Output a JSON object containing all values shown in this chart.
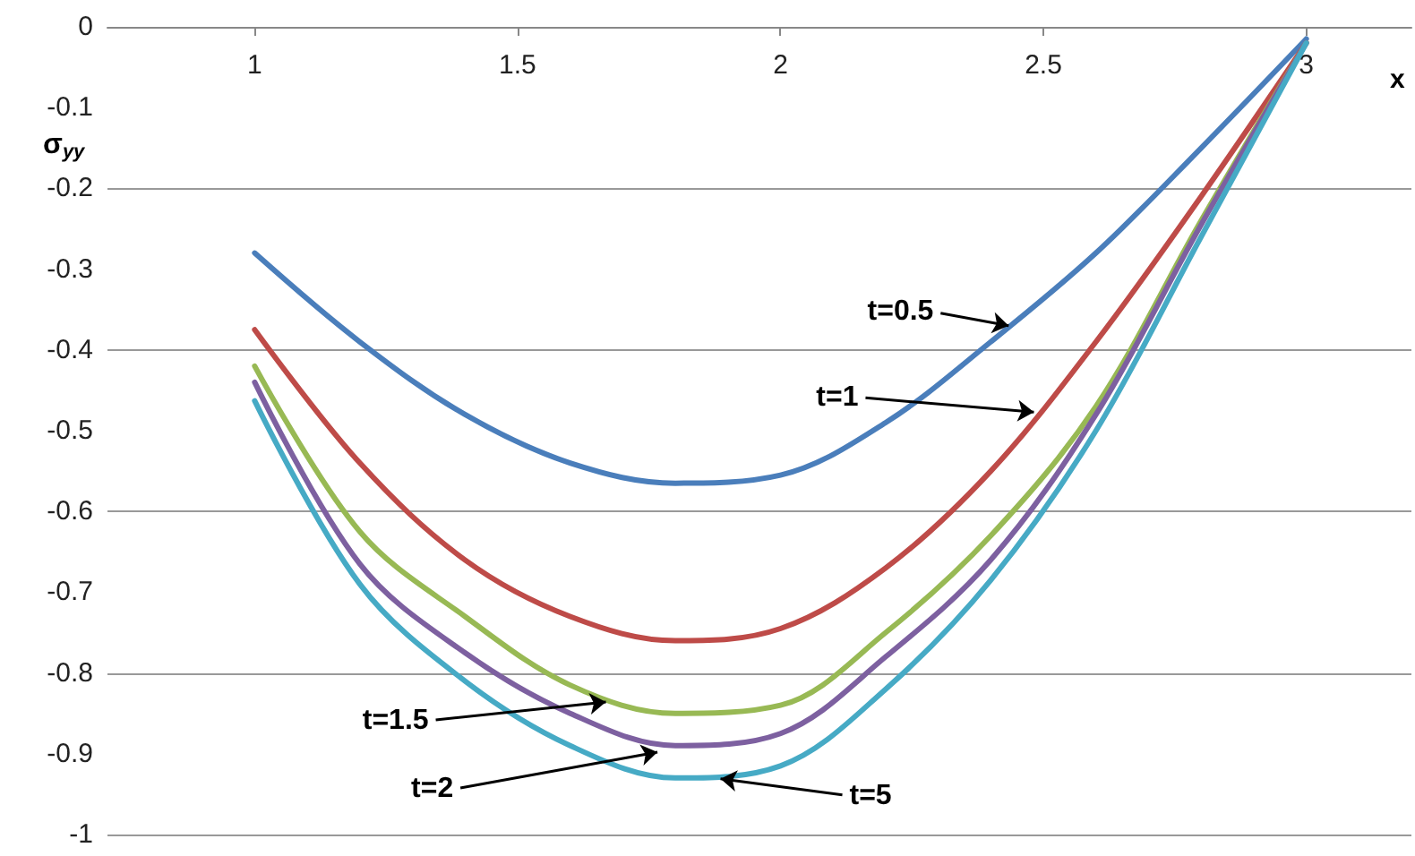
{
  "chart_data": {
    "type": "line",
    "ylabel": "σ$_{yy}$",
    "xlabel": "x",
    "x": [
      1,
      1.2,
      1.4,
      1.6,
      1.8,
      2,
      2.2,
      2.4,
      2.6,
      2.8,
      3
    ],
    "series": [
      {
        "color": "#4a7ebb",
        "values": [
          -0.28,
          -0.39,
          -0.48,
          -0.54,
          -0.565,
          -0.555,
          -0.49,
          -0.39,
          -0.28,
          -0.15,
          -0.015
        ]
      },
      {
        "color": "#be4b48",
        "values": [
          -0.375,
          -0.54,
          -0.66,
          -0.73,
          -0.76,
          -0.745,
          -0.67,
          -0.55,
          -0.39,
          -0.21,
          -0.02
        ]
      },
      {
        "color": "#98b954",
        "values": [
          -0.42,
          -0.625,
          -0.73,
          -0.815,
          -0.85,
          -0.84,
          -0.75,
          -0.63,
          -0.47,
          -0.24,
          -0.02
        ]
      },
      {
        "color": "#7d60a0",
        "values": [
          -0.44,
          -0.665,
          -0.775,
          -0.85,
          -0.89,
          -0.875,
          -0.78,
          -0.66,
          -0.48,
          -0.245,
          -0.02
        ]
      },
      {
        "color": "#46aac5",
        "values": [
          -0.463,
          -0.69,
          -0.81,
          -0.89,
          -0.93,
          -0.915,
          -0.82,
          -0.685,
          -0.5,
          -0.26,
          -0.02
        ]
      }
    ],
    "xlim": [
      0.72,
      3.2
    ],
    "xticks": [
      1,
      1.5,
      2,
      2.5,
      3
    ],
    "ylim": [
      -1,
      0
    ],
    "yticks": [
      -1,
      -0.9,
      -0.8,
      -0.7,
      -0.6,
      -0.5,
      -0.4,
      -0.3,
      -0.2,
      -0.1,
      0
    ],
    "grid": "y",
    "marker": "none",
    "line_style": "solid",
    "annotations": [
      {
        "text": "t=0.5",
        "x": 2.434,
        "y": -0.37
      },
      {
        "text": "t=1",
        "x": 2.482,
        "y": -0.477
      },
      {
        "text": "t=1.5",
        "x": 1.668,
        "y": -0.836
      },
      {
        "text": "t=2",
        "x": 1.766,
        "y": -0.898
      },
      {
        "text": "t=5",
        "x": 1.886,
        "y": -0.931
      }
    ]
  }
}
